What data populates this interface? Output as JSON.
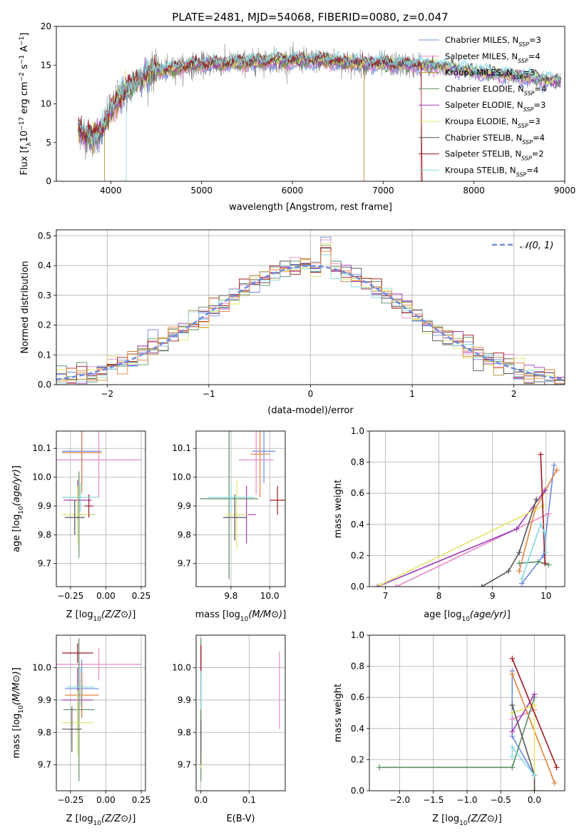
{
  "figure": {
    "title": "PLATE=2481, MJD=54068, FIBERID=0080, z=0.047"
  },
  "colors": {
    "series": [
      "#6c8be3",
      "#e88ac8",
      "#b58b2e",
      "#5b8f64",
      "#9f3ab8",
      "#e3e36a",
      "#555555",
      "#a01820",
      "#86d8e0"
    ],
    "orange": "#e3823a",
    "gray": "#808080",
    "grid": "#b0b0b0"
  },
  "chart_data": [
    {
      "id": "spectrum",
      "type": "line",
      "title": "PLATE=2481, MJD=54068, FIBERID=0080, z=0.047",
      "xlabel": "wavelength [Angstrom, rest frame]",
      "ylabel": "Flux [f_λ 10^-17 erg cm^-2 s^-1 A^-1]",
      "xlim": [
        3400,
        9000
      ],
      "ylim": [
        0,
        20
      ],
      "xticks": [
        4000,
        5000,
        6000,
        7000,
        8000,
        9000
      ],
      "yticks": [
        0,
        5,
        10,
        15,
        20
      ],
      "grid": false,
      "legend": "top-right",
      "continuum": {
        "x": [
          3640,
          3700,
          3800,
          3900,
          4000,
          4100,
          4200,
          4300,
          4400,
          4500,
          4600,
          4800,
          5000,
          5200,
          5400,
          5600,
          5800,
          6000,
          6200,
          6400,
          6600,
          6800,
          7000,
          7200,
          7400,
          7600,
          7800,
          8000,
          8200,
          8400,
          8600,
          8800,
          8960
        ],
        "y": [
          6.8,
          6.0,
          5.5,
          6.5,
          9.0,
          11.0,
          12.0,
          13.2,
          13.8,
          14.4,
          14.3,
          14.8,
          15.1,
          15.2,
          15.3,
          15.4,
          15.6,
          15.6,
          15.6,
          15.6,
          15.3,
          15.2,
          15.1,
          15.0,
          15.0,
          14.9,
          14.5,
          14.2,
          13.9,
          13.7,
          13.4,
          13.1,
          12.9
        ]
      },
      "series": [
        {
          "name": "Chabrier MILES, N_SSP=3",
          "label_main": "Chabrier MILES, N",
          "label_sub": "SSP",
          "label_n": "=3"
        },
        {
          "name": "Salpeter MILES, N_SSP=4",
          "label_main": "Salpeter MILES, N",
          "label_sub": "SSP",
          "label_n": "=4"
        },
        {
          "name": "Kroupa MILES, N_SSP=3",
          "label_main": "Kroupa MILES, N",
          "label_sub": "SSP",
          "label_n": "=3"
        },
        {
          "name": "Chabrier ELODIE, N_SSP=4",
          "label_main": "Chabrier ELODIE, N",
          "label_sub": "SSP",
          "label_n": "=4"
        },
        {
          "name": "Salpeter ELODIE, N_SSP=3",
          "label_main": "Salpeter ELODIE, N",
          "label_sub": "SSP",
          "label_n": "=3"
        },
        {
          "name": "Kroupa ELODIE, N_SSP=3",
          "label_main": "Kroupa ELODIE, N",
          "label_sub": "SSP",
          "label_n": "=3"
        },
        {
          "name": "Chabrier STELIB, N_SSP=4",
          "label_main": "Chabrier STELIB, N",
          "label_sub": "SSP",
          "label_n": "=4"
        },
        {
          "name": "Salpeter STELIB, N_SSP=2",
          "label_main": "Salpeter STELIB, N",
          "label_sub": "SSP",
          "label_n": "=2"
        },
        {
          "name": "Kroupa STELIB, N_SSP=4",
          "label_main": "Kroupa STELIB, N",
          "label_sub": "SSP",
          "label_n": "=4"
        }
      ]
    },
    {
      "id": "residuals",
      "type": "histogram",
      "xlabel": "(data-model)/error",
      "ylabel": "Normed distribution",
      "xlim": [
        -2.5,
        2.5
      ],
      "ylim": [
        0,
        0.52
      ],
      "xticks": [
        -2,
        -1,
        0,
        1,
        2
      ],
      "yticks": [
        0.0,
        0.1,
        0.2,
        0.3,
        0.4,
        0.5
      ],
      "grid": true,
      "legend": "top-right",
      "reference": {
        "name": "N(0,1)",
        "label": "𝒩(0, 1)",
        "mu": 0,
        "sigma": 1
      },
      "bin_width": 0.1
    },
    {
      "id": "age_vs_Z",
      "type": "errorbar",
      "xlabel": "Z [log10(Z/Z⊙)]",
      "ylabel": "age [log10(age/yr)]",
      "xlim": [
        -0.35,
        0.28
      ],
      "ylim": [
        9.62,
        10.16
      ],
      "xticks": [
        -0.25,
        0.0,
        0.25
      ],
      "yticks": [
        9.7,
        9.8,
        9.9,
        10.0,
        10.1
      ],
      "grid": true,
      "points": [
        {
          "x": -0.17,
          "y": 10.09,
          "xerr": 0.14,
          "yerr": 0.12
        },
        {
          "x": -0.05,
          "y": 10.06,
          "xerr": 0.3,
          "yerr": 0.13
        },
        {
          "x": -0.17,
          "y": 10.085,
          "xerr": 0.14,
          "yerr": 0.14
        },
        {
          "x": -0.19,
          "y": 9.87,
          "xerr": 0.11,
          "yerr": 0.15
        },
        {
          "x": -0.2,
          "y": 9.92,
          "xerr": 0.1,
          "yerr": 0.07
        },
        {
          "x": -0.2,
          "y": 9.87,
          "xerr": 0.11,
          "yerr": 0.1
        },
        {
          "x": -0.22,
          "y": 9.86,
          "xerr": 0.07,
          "yerr": 0.06
        },
        {
          "x": -0.12,
          "y": 9.9,
          "xerr": 0.03,
          "yerr": 0.04
        },
        {
          "x": -0.18,
          "y": 9.93,
          "xerr": 0.13,
          "yerr": 0.05
        }
      ]
    },
    {
      "id": "age_vs_mass",
      "type": "errorbar",
      "xlabel": "mass [log10(M/M⊙)]",
      "ylabel": "",
      "xlim": [
        9.62,
        10.08
      ],
      "ylim": [
        9.62,
        10.16
      ],
      "xticks": [
        9.8,
        10.0
      ],
      "yticks": [
        9.7,
        9.8,
        9.9,
        10.0,
        10.1
      ],
      "grid": true,
      "points": [
        {
          "x": 9.97,
          "y": 10.09,
          "xerr": 0.06,
          "yerr": 0.11
        },
        {
          "x": 9.93,
          "y": 10.06,
          "xerr": 0.09,
          "yerr": 0.12
        },
        {
          "x": 9.95,
          "y": 10.08,
          "xerr": 0.05,
          "yerr": 0.15
        },
        {
          "x": 9.79,
          "y": 9.925,
          "xerr": 0.15,
          "yerr": 0.28
        },
        {
          "x": 9.88,
          "y": 9.87,
          "xerr": 0.05,
          "yerr": 0.1
        },
        {
          "x": 9.83,
          "y": 9.87,
          "xerr": 0.06,
          "yerr": 0.12
        },
        {
          "x": 9.82,
          "y": 9.86,
          "xerr": 0.06,
          "yerr": 0.08
        },
        {
          "x": 10.04,
          "y": 9.92,
          "xerr": 0.04,
          "yerr": 0.05
        },
        {
          "x": 9.8,
          "y": 9.93,
          "xerr": 0.12,
          "yerr": 0.05
        }
      ]
    },
    {
      "id": "weight_vs_age",
      "type": "line",
      "xlabel": "age [log10(age/yr)]",
      "ylabel": "mass weight",
      "xlim": [
        6.7,
        10.35
      ],
      "ylim": [
        0,
        1
      ],
      "xticks": [
        7,
        8,
        9,
        10
      ],
      "yticks": [
        0.0,
        0.2,
        0.4,
        0.6,
        0.8,
        1.0
      ],
      "grid": true,
      "series": [
        {
          "x": [
            9.55,
            9.95,
            10.15
          ],
          "y": [
            0.02,
            0.2,
            0.78
          ]
        },
        {
          "x": [
            7.2,
            10.05
          ],
          "y": [
            0.0,
            0.47
          ]
        },
        {
          "x": [
            9.5,
            9.8,
            10.2
          ],
          "y": [
            0.1,
            0.5,
            0.75
          ]
        },
        {
          "x": [
            9.5,
            9.85,
            10.05
          ],
          "y": [
            0.15,
            0.16,
            0.14
          ]
        },
        {
          "x": [
            6.85,
            9.45,
            9.98
          ],
          "y": [
            0.0,
            0.37,
            0.62
          ]
        },
        {
          "x": [
            6.9,
            9.95
          ],
          "y": [
            0.01,
            0.52
          ]
        },
        {
          "x": [
            8.8,
            9.3,
            9.5,
            9.82
          ],
          "y": [
            0.0,
            0.1,
            0.22,
            0.56
          ]
        },
        {
          "x": [
            9.9,
            9.98
          ],
          "y": [
            0.85,
            0.15
          ]
        },
        {
          "x": [
            9.55,
            9.9,
            9.97,
            10.0
          ],
          "y": [
            0.05,
            0.4,
            0.35,
            0.22
          ]
        }
      ]
    },
    {
      "id": "mass_vs_Z",
      "type": "errorbar",
      "xlabel": "Z [log10(Z/Z⊙)]",
      "ylabel": "mass [log10(M/M⊙)]",
      "xlim": [
        -0.35,
        0.28
      ],
      "ylim": [
        9.62,
        10.1
      ],
      "xticks": [
        -0.25,
        0.0,
        0.25
      ],
      "yticks": [
        9.7,
        9.8,
        9.9,
        10.0
      ],
      "grid": true,
      "points": [
        {
          "x": -0.17,
          "y": 9.935,
          "xerr": 0.12,
          "yerr": 0.09
        },
        {
          "x": -0.05,
          "y": 10.01,
          "xerr": 0.3,
          "yerr": 0.05
        },
        {
          "x": -0.17,
          "y": 9.915,
          "xerr": 0.12,
          "yerr": 0.07
        },
        {
          "x": -0.19,
          "y": 9.87,
          "xerr": 0.11,
          "yerr": 0.22
        },
        {
          "x": -0.2,
          "y": 9.9,
          "xerr": 0.11,
          "yerr": 0.1
        },
        {
          "x": -0.2,
          "y": 9.83,
          "xerr": 0.11,
          "yerr": 0.1
        },
        {
          "x": -0.24,
          "y": 9.81,
          "xerr": 0.07,
          "yerr": 0.07
        },
        {
          "x": -0.2,
          "y": 10.045,
          "xerr": 0.11,
          "yerr": 0.03
        },
        {
          "x": -0.18,
          "y": 9.94,
          "xerr": 0.1,
          "yerr": 0.06
        }
      ]
    },
    {
      "id": "mass_vs_ebv",
      "type": "errorbar",
      "xlabel": "E(B-V)",
      "ylabel": "",
      "xlim": [
        -0.01,
        0.175
      ],
      "ylim": [
        9.62,
        10.1
      ],
      "xticks": [
        0.0,
        0.1
      ],
      "yticks": [
        9.7,
        9.8,
        9.9,
        10.0
      ],
      "grid": true,
      "points": [
        {
          "x": 0.0,
          "y": 9.93,
          "xerr": 0.0,
          "yerr": 0.08
        },
        {
          "x": 0.163,
          "y": 9.93,
          "xerr": 0.0,
          "yerr": 0.12
        },
        {
          "x": 0.0,
          "y": 9.9,
          "xerr": 0.0,
          "yerr": 0.06
        },
        {
          "x": 0.0,
          "y": 9.87,
          "xerr": 0.0,
          "yerr": 0.22
        },
        {
          "x": 0.0,
          "y": 9.97,
          "xerr": 0.0,
          "yerr": 0.08
        },
        {
          "x": 0.0,
          "y": 9.72,
          "xerr": 0.0,
          "yerr": 0.03
        },
        {
          "x": 0.0,
          "y": 9.77,
          "xerr": 0.0,
          "yerr": 0.07
        },
        {
          "x": 0.0,
          "y": 10.02,
          "xerr": 0.0,
          "yerr": 0.05
        },
        {
          "x": 0.0,
          "y": 9.93,
          "xerr": 0.0,
          "yerr": 0.06
        }
      ]
    },
    {
      "id": "weight_vs_Z",
      "type": "line",
      "xlabel": "Z [log10(Z/Z⊙)]",
      "ylabel": "mass weight",
      "xlim": [
        -2.45,
        0.45
      ],
      "ylim": [
        0,
        1
      ],
      "xticks": [
        -2.0,
        -1.5,
        -1.0,
        -0.5,
        0.0
      ],
      "yticks": [
        0.0,
        0.2,
        0.4,
        0.6,
        0.8,
        1.0
      ],
      "grid": true,
      "series": [
        {
          "x": [
            -0.33,
            -0.33,
            0.0
          ],
          "y": [
            0.77,
            0.35,
            0.1
          ]
        },
        {
          "x": [
            -0.33,
            0.0
          ],
          "y": [
            0.46,
            0.52
          ]
        },
        {
          "x": [
            -0.33,
            0.3
          ],
          "y": [
            0.75,
            0.05
          ]
        },
        {
          "x": [
            -2.3,
            -0.33,
            0.0
          ],
          "y": [
            0.15,
            0.15,
            0.6
          ]
        },
        {
          "x": [
            -0.33,
            0.0
          ],
          "y": [
            0.38,
            0.62
          ]
        },
        {
          "x": [
            -0.33,
            0.0,
            0.0
          ],
          "y": [
            0.5,
            0.55,
            0.0
          ]
        },
        {
          "x": [
            -0.33,
            0.0,
            0.0
          ],
          "y": [
            0.55,
            0.1,
            0.0
          ]
        },
        {
          "x": [
            -0.33,
            0.33
          ],
          "y": [
            0.85,
            0.15
          ]
        },
        {
          "x": [
            -0.33,
            -0.33,
            0.0
          ],
          "y": [
            0.22,
            0.28,
            0.1
          ]
        }
      ]
    }
  ]
}
